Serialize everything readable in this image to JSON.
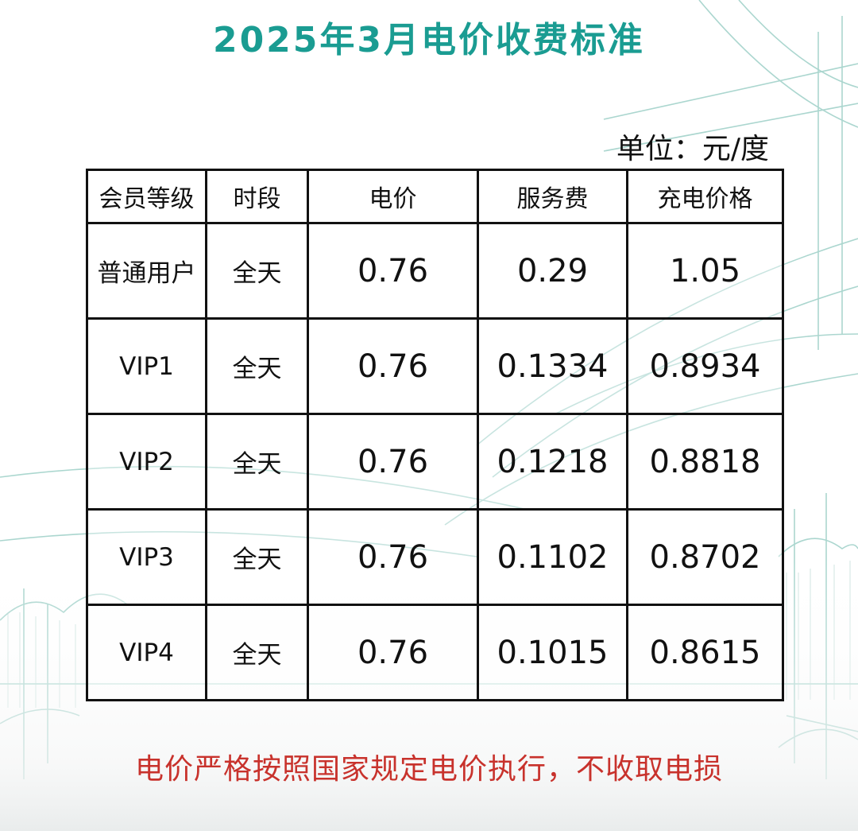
{
  "title": "2025年3月电价收费标准",
  "unit": "单位：元/度",
  "table": {
    "headers": [
      "会员等级",
      "时段",
      "电价",
      "服务费",
      "充电价格"
    ],
    "rows": [
      {
        "level": "普通用户",
        "period": "全天",
        "electricity_price": "0.76",
        "service_fee": "0.29",
        "charging_price": "1.05"
      },
      {
        "level": "VIP1",
        "period": "全天",
        "electricity_price": "0.76",
        "service_fee": "0.1334",
        "charging_price": "0.8934"
      },
      {
        "level": "VIP2",
        "period": "全天",
        "electricity_price": "0.76",
        "service_fee": "0.1218",
        "charging_price": "0.8818"
      },
      {
        "level": "VIP3",
        "period": "全天",
        "electricity_price": "0.76",
        "service_fee": "0.1102",
        "charging_price": "0.8702"
      },
      {
        "level": "VIP4",
        "period": "全天",
        "electricity_price": "0.76",
        "service_fee": "0.1015",
        "charging_price": "0.8615"
      }
    ]
  },
  "footer_note": "电价严格按照国家规定电价执行，不收取电损",
  "colors": {
    "title": "#1a9c92",
    "footer_note": "#c8322c",
    "sketch_lines": "#8fc9bf"
  }
}
